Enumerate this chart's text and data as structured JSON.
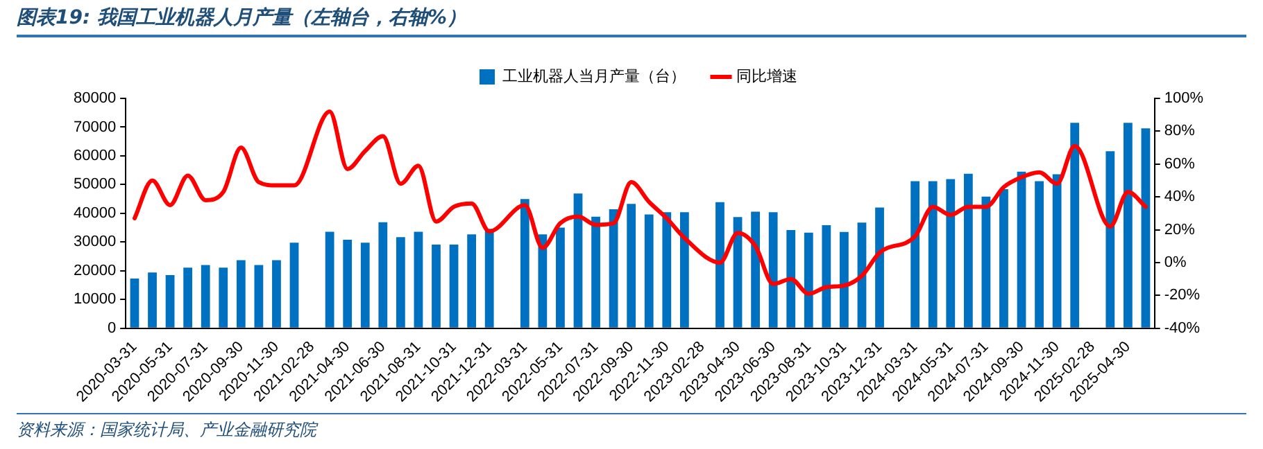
{
  "chart_data": {
    "type": "bar",
    "title": "图表19: 我国工业机器人月产量（左轴台，右轴%）",
    "categories": [
      "2020-03-31",
      null,
      "2020-05-31",
      null,
      "2020-07-31",
      null,
      "2020-09-30",
      null,
      "2020-11-30",
      null,
      "2021-02-28",
      null,
      "2021-04-30",
      null,
      "2021-06-30",
      null,
      "2021-08-31",
      null,
      "2021-10-31",
      null,
      "2021-12-31",
      null,
      "2022-03-31",
      null,
      "2022-05-31",
      null,
      "2022-07-31",
      null,
      "2022-09-30",
      null,
      "2022-11-30",
      null,
      "2023-02-28",
      null,
      "2023-04-30",
      null,
      "2023-06-30",
      null,
      "2023-08-31",
      null,
      "2023-10-31",
      null,
      "2023-12-31",
      null,
      "2024-03-31",
      null,
      "2024-05-31",
      null,
      "2024-07-31",
      null,
      "2024-09-30",
      null,
      "2024-11-30",
      null,
      "2025-02-28",
      null,
      "2025-04-30",
      null
    ],
    "series": [
      {
        "name": "工业机器人当月产量（台）",
        "color": "#0070c0",
        "values": [
          17300,
          19400,
          18500,
          21100,
          22000,
          21100,
          23700,
          22000,
          23700,
          29800,
          null,
          33600,
          30800,
          29800,
          36900,
          31700,
          33600,
          29100,
          29100,
          32700,
          34600,
          null,
          45000,
          32700,
          35000,
          46900,
          38800,
          41400,
          43300,
          39600,
          40400,
          40400,
          null,
          43900,
          38700,
          40600,
          40400,
          34200,
          33300,
          35900,
          33500,
          36800,
          42000,
          null,
          51200,
          51200,
          51900,
          53800,
          45800,
          48400,
          54500,
          51200,
          53600,
          71500,
          null,
          61600,
          71500,
          69600
        ]
      },
      {
        "name": "同比增速",
        "type": "line",
        "axis": "y2",
        "color": "#ff0000",
        "values": [
          27,
          50,
          35,
          53,
          38,
          43,
          70,
          49,
          47,
          47,
          null,
          92,
          57,
          68,
          77,
          48,
          59,
          25,
          34,
          36,
          19,
          null,
          35,
          9,
          24,
          28,
          23,
          24,
          49,
          37,
          27,
          15,
          null,
          0,
          18,
          10,
          -13,
          -10,
          -19,
          -15,
          -14,
          -8,
          6,
          null,
          16,
          34,
          29,
          34,
          34,
          46,
          52,
          55,
          48,
          71,
          null,
          22,
          43,
          34
        ]
      }
    ],
    "ylim": [
      0,
      80000
    ],
    "yticks": [
      0,
      10000,
      20000,
      30000,
      40000,
      50000,
      60000,
      70000,
      80000
    ],
    "y2lim": [
      -40,
      100
    ],
    "y2ticks": [
      {
        "value": -40,
        "label": "-40%"
      },
      {
        "value": -20,
        "label": "-20%"
      },
      {
        "value": 0,
        "label": "0%"
      },
      {
        "value": 20,
        "label": "20%"
      },
      {
        "value": 40,
        "label": "40%"
      },
      {
        "value": 60,
        "label": "60%"
      },
      {
        "value": 80,
        "label": "80%"
      },
      {
        "value": 100,
        "label": "100%"
      }
    ],
    "grid": false,
    "legend": "top",
    "marker": "none",
    "annotations": [
      "资料来源：国家统计局、产业金融研究院"
    ]
  }
}
